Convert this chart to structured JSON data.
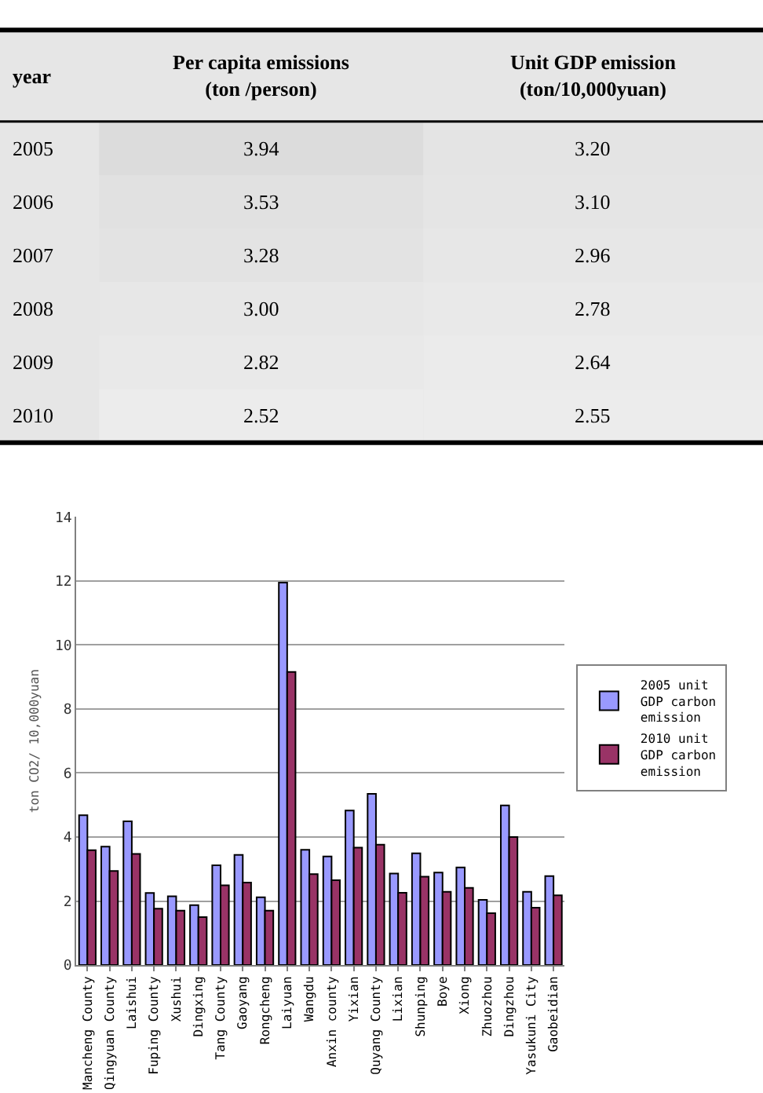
{
  "chart_data": [
    {
      "type": "heatmap",
      "ylabel": "year",
      "categories": [
        "Per capita emissions\n(ton /person)",
        "Unit GDP emission\n(ton/10,000yuan)"
      ],
      "y_categories": [
        "2005",
        "2006",
        "2007",
        "2008",
        "2009",
        "2010"
      ],
      "cells": [
        [
          3.94,
          3.2
        ],
        [
          3.53,
          3.1
        ],
        [
          3.28,
          2.96
        ],
        [
          3.0,
          2.78
        ],
        [
          2.82,
          2.64
        ],
        [
          2.52,
          2.55
        ]
      ],
      "cell_labels": [
        [
          "3.94",
          "3.20"
        ],
        [
          "3.53",
          "3.10"
        ],
        [
          "3.28",
          "2.96"
        ],
        [
          "3.00",
          "2.78"
        ],
        [
          "2.82",
          "2.64"
        ],
        [
          "2.52",
          "2.55"
        ]
      ]
    },
    {
      "type": "bar",
      "ylabel": "ton CO2/ 10,000yuan",
      "categories": [
        "Mancheng County",
        "Qingyuan County",
        "Laishui",
        "Fuping County",
        "Xushui",
        "Dingxing",
        "Tang County",
        "Gaoyang",
        "Rongcheng",
        "Laiyuan",
        "Wangdu",
        "Anxin county",
        "Yixian",
        "Quyang County",
        "Lixian",
        "Shunping",
        "Boye",
        "Xiong",
        "Zhuozhou",
        "Dingzhou",
        "Yasukuni City",
        "Gaobeidian"
      ],
      "series": [
        {
          "name": "2005 unit GDP carbon emission",
          "color": "#9999ff",
          "values": [
            4.68,
            3.7,
            4.49,
            2.25,
            2.15,
            1.87,
            3.12,
            3.44,
            2.12,
            11.95,
            3.6,
            3.39,
            4.83,
            5.35,
            2.86,
            3.49,
            2.89,
            3.05,
            2.04,
            4.99,
            2.29,
            2.78
          ]
        },
        {
          "name": "2010 unit GDP carbon emission",
          "color": "#993366",
          "values": [
            3.59,
            2.94,
            3.47,
            1.76,
            1.7,
            1.5,
            2.49,
            2.58,
            1.7,
            9.16,
            2.84,
            2.65,
            3.67,
            3.76,
            2.26,
            2.76,
            2.29,
            2.41,
            1.62,
            4.0,
            1.79,
            2.18
          ]
        }
      ],
      "ylim": [
        0,
        14
      ],
      "yticks": [
        0,
        2,
        4,
        6,
        8,
        10,
        12,
        14
      ],
      "grid": "y",
      "legend": "right"
    }
  ]
}
